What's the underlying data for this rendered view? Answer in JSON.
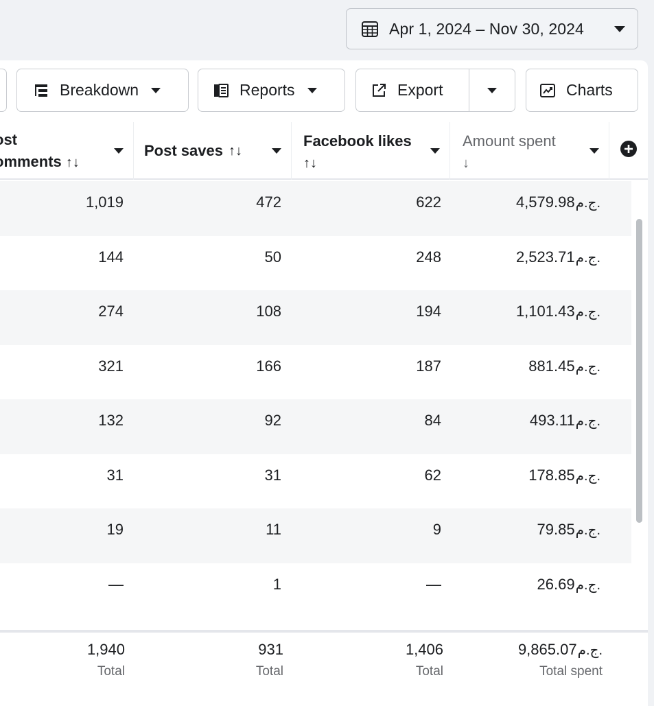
{
  "date_range": {
    "label": "Apr 1, 2024 – Nov 30, 2024"
  },
  "toolbar": {
    "breakdown_label": "Breakdown",
    "reports_label": "Reports",
    "export_label": "Export",
    "charts_label": "Charts"
  },
  "icons": {
    "calendar": "calendar-icon",
    "breakdown": "breakdown-icon",
    "reports": "reports-icon",
    "export": "export-icon",
    "charts": "line-chart-icon",
    "add_column": "plus-circle-icon"
  },
  "columns": {
    "comments": {
      "line1": "ost",
      "line2": "omments",
      "sort": "↑↓"
    },
    "saves": {
      "label": "Post saves",
      "sort": "↑↓"
    },
    "likes": {
      "line1": "Facebook likes",
      "sort": "↑↓"
    },
    "spent": {
      "line1": "Amount spent",
      "sort": "↓"
    }
  },
  "currency": "ج.م.",
  "rows": [
    {
      "comments": "1,019",
      "saves": "472",
      "likes": "622",
      "spent": "4,579.98"
    },
    {
      "comments": "144",
      "saves": "50",
      "likes": "248",
      "spent": "2,523.71"
    },
    {
      "comments": "274",
      "saves": "108",
      "likes": "194",
      "spent": "1,101.43"
    },
    {
      "comments": "321",
      "saves": "166",
      "likes": "187",
      "spent": "881.45"
    },
    {
      "comments": "132",
      "saves": "92",
      "likes": "84",
      "spent": "493.11"
    },
    {
      "comments": "31",
      "saves": "31",
      "likes": "62",
      "spent": "178.85"
    },
    {
      "comments": "19",
      "saves": "11",
      "likes": "9",
      "spent": "79.85"
    },
    {
      "comments": "—",
      "saves": "1",
      "likes": "—",
      "spent": "26.69"
    }
  ],
  "totals": {
    "comments": {
      "value": "1,940",
      "label": "Total"
    },
    "saves": {
      "value": "931",
      "label": "Total"
    },
    "likes": {
      "value": "1,406",
      "label": "Total"
    },
    "spent": {
      "value": "9,865.07",
      "label": "Total spent"
    }
  },
  "colors": {
    "background": "#f0f2f5",
    "panel": "#ffffff",
    "alt_row": "#f5f6f7",
    "muted_text": "#65676b",
    "border": "#c9ccd1"
  }
}
